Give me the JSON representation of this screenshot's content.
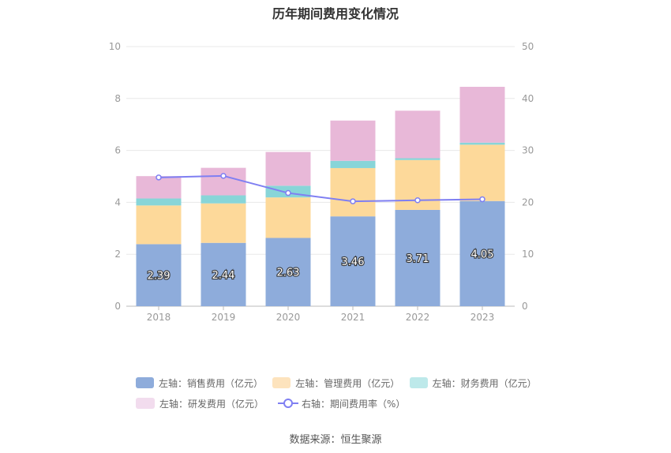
{
  "title": "历年期间费用变化情况",
  "source": "数据来源：恒生聚源",
  "colors": {
    "sales": "#8eacdb",
    "management": "#fdd99a",
    "finance": "#88d5d8",
    "rnd": "#e8b8d8",
    "rate_line": "#7f7ff2",
    "grid": "#e8e8e8",
    "axis_text": "#999999"
  },
  "legend": [
    {
      "label": "左轴：销售费用（亿元）",
      "color": "#8eacdb",
      "kind": "bar"
    },
    {
      "label": "左轴：管理费用（亿元）",
      "color": "#fde3bd",
      "kind": "bar"
    },
    {
      "label": "左轴：财务费用（亿元）",
      "color": "#bde9ea",
      "kind": "bar"
    },
    {
      "label": "左轴：研发费用（亿元）",
      "color": "#f2dcee",
      "kind": "bar"
    },
    {
      "label": "右轴：期间费用率（%）",
      "color": "#7f7ff2",
      "kind": "line"
    }
  ],
  "chart_data": {
    "type": "bar",
    "stacked": true,
    "categories": [
      "2018",
      "2019",
      "2020",
      "2021",
      "2022",
      "2023"
    ],
    "series": [
      {
        "name": "左轴：销售费用（亿元）",
        "key": "sales",
        "axis": "left",
        "values": [
          2.39,
          2.44,
          2.63,
          3.46,
          3.71,
          4.05
        ],
        "labels": [
          "2.39",
          "2.44",
          "2.63",
          "3.46",
          "3.71",
          "4.05"
        ]
      },
      {
        "name": "左轴：管理费用（亿元）",
        "key": "management",
        "axis": "left",
        "values": [
          1.49,
          1.52,
          1.56,
          1.86,
          1.92,
          2.17
        ]
      },
      {
        "name": "左轴：财务费用（亿元）",
        "key": "finance",
        "axis": "left",
        "values": [
          0.27,
          0.31,
          0.45,
          0.28,
          0.07,
          0.08
        ]
      },
      {
        "name": "左轴：研发费用（亿元）",
        "key": "rnd",
        "axis": "left",
        "values": [
          0.86,
          1.06,
          1.3,
          1.55,
          1.83,
          2.15
        ]
      },
      {
        "name": "右轴：期间费用率（%）",
        "key": "rate",
        "axis": "right",
        "type": "line",
        "values": [
          24.8,
          25.1,
          21.8,
          20.2,
          20.4,
          20.6
        ]
      }
    ],
    "left_axis": {
      "ylim": [
        0,
        10
      ],
      "ticks": [
        "0",
        "2",
        "4",
        "6",
        "8",
        "10"
      ]
    },
    "right_axis": {
      "ylim": [
        0,
        50
      ],
      "ticks": [
        "0",
        "10",
        "20",
        "30",
        "40",
        "50"
      ]
    },
    "grid": true,
    "legend_position": "bottom"
  }
}
